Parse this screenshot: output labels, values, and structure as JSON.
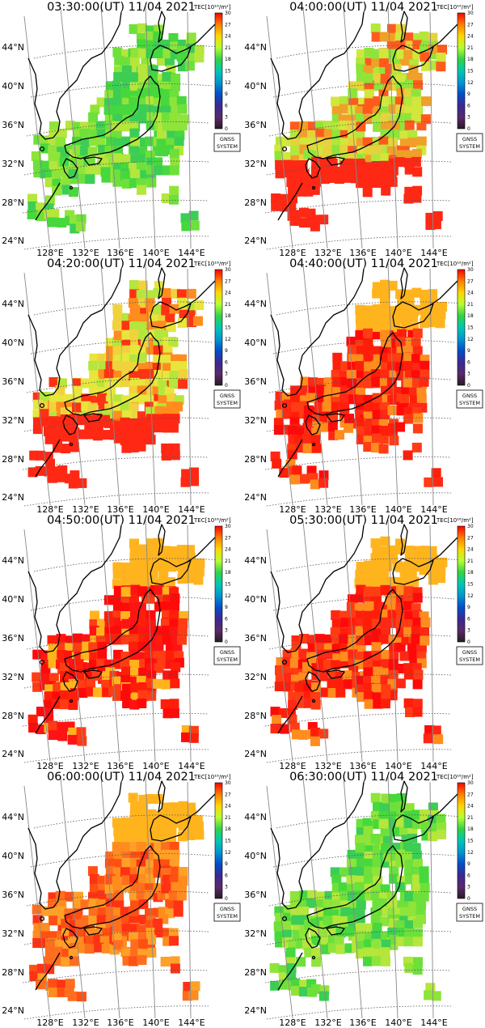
{
  "colorbar": {
    "title": "TEC[10¹⁶/m²]",
    "ticks": [
      "30",
      "27",
      "24",
      "21",
      "18",
      "15",
      "12",
      "9",
      "6",
      "3",
      "0"
    ],
    "colors": [
      "#ff0000",
      "#ff8000",
      "#ffd700",
      "#b4ff32",
      "#32d246",
      "#00c8b4",
      "#0096d2",
      "#0050c8",
      "#3c2896",
      "#5a2a6a",
      "#2a1a2a"
    ]
  },
  "logo": {
    "line1": "GNSS",
    "line2": "SYSTEM"
  },
  "lat_labels": [
    "44°N",
    "40°N",
    "36°N",
    "32°N",
    "28°N",
    "24°N"
  ],
  "lon_labels": [
    "128°E",
    "132°E",
    "136°E",
    "140°E",
    "144°E"
  ],
  "map_colors": {
    "coast": "#000000",
    "grid": "#555555",
    "meridian": "#888888"
  },
  "panels": [
    {
      "time": "03:30:00(UT) 11/04 2021",
      "level": "low"
    },
    {
      "time": "04:00:00(UT) 11/04 2021",
      "level": "rising"
    },
    {
      "time": "04:20:00(UT) 11/04 2021",
      "level": "mid"
    },
    {
      "time": "04:40:00(UT) 11/04 2021",
      "level": "high"
    },
    {
      "time": "04:50:00(UT) 11/04 2021",
      "level": "peak"
    },
    {
      "time": "05:30:00(UT) 11/04 2021",
      "level": "high"
    },
    {
      "time": "06:00:00(UT) 11/04 2021",
      "level": "high-orange"
    },
    {
      "time": "06:30:00(UT) 11/04 2021",
      "level": "low"
    }
  ]
}
